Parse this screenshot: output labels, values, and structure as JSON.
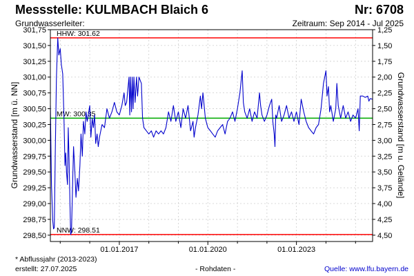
{
  "header": {
    "title": "Messstelle: KULMBACH Blaich 6",
    "number": "Nr: 6708",
    "subtitle": "Grundwasserleiter:",
    "period": "Zeitraum: Sep 2014 - Jul 2025"
  },
  "footer": {
    "footnote": "* Abflussjahr (2013-2023)",
    "created": "erstellt:  27.07.2025",
    "rawdata": "- Rohdaten -",
    "source": "Quelle: www.lfu.bayern.de"
  },
  "colors": {
    "series": "#0000cc",
    "extreme_lines": "#ff0000",
    "mean_line": "#00aa00",
    "grid": "#cccccc"
  },
  "chart_data": {
    "type": "line",
    "title": "Messstelle: KULMBACH Blaich 6",
    "ylabel": "Grundwasserstand [m ü. NN]",
    "ylabel_right": "Grundwasserstand [m u. Gelände]",
    "xlim": [
      "2014-09-01",
      "2025-07-31"
    ],
    "ylim": [
      298.4,
      301.75
    ],
    "ylim_right": [
      4.6,
      1.25
    ],
    "y_ticks": [
      {
        "value": 298.5,
        "label": "298,50"
      },
      {
        "value": 298.75,
        "label": "298,75"
      },
      {
        "value": 299.0,
        "label": "299,00"
      },
      {
        "value": 299.25,
        "label": "299,25"
      },
      {
        "value": 299.5,
        "label": "299,50"
      },
      {
        "value": 299.75,
        "label": "299,75"
      },
      {
        "value": 300.0,
        "label": "300,00"
      },
      {
        "value": 300.25,
        "label": "300,25"
      },
      {
        "value": 300.5,
        "label": "300,50"
      },
      {
        "value": 300.75,
        "label": "300,75"
      },
      {
        "value": 301.0,
        "label": "301,00"
      },
      {
        "value": 301.25,
        "label": "301,25"
      },
      {
        "value": 301.5,
        "label": "301,50"
      },
      {
        "value": 301.75,
        "label": "301,75"
      }
    ],
    "y_ticks_right": [
      {
        "value": 1.25,
        "label": "1,25"
      },
      {
        "value": 1.5,
        "label": "1,50"
      },
      {
        "value": 1.75,
        "label": "1,75"
      },
      {
        "value": 2.0,
        "label": "2,00"
      },
      {
        "value": 2.25,
        "label": "2,25"
      },
      {
        "value": 2.5,
        "label": "2,50"
      },
      {
        "value": 2.75,
        "label": "2,75"
      },
      {
        "value": 3.0,
        "label": "3,00"
      },
      {
        "value": 3.25,
        "label": "3,25"
      },
      {
        "value": 3.5,
        "label": "3,50"
      },
      {
        "value": 3.75,
        "label": "3,75"
      },
      {
        "value": 4.0,
        "label": "4,00"
      },
      {
        "value": 4.25,
        "label": "4,25"
      },
      {
        "value": 4.5,
        "label": "4,50"
      }
    ],
    "x_ticks": [
      {
        "date": "2017-01-01",
        "label": "01.01.2017"
      },
      {
        "date": "2020-01-01",
        "label": "01.01.2020"
      },
      {
        "date": "2023-01-01",
        "label": "01.01.2023"
      }
    ],
    "x_minor_ticks": [
      "2015-01-01",
      "2016-01-01",
      "2018-01-01",
      "2019-01-01",
      "2021-01-01",
      "2022-01-01",
      "2024-01-01",
      "2025-01-01"
    ],
    "grid": true,
    "reference_lines": [
      {
        "label": "HHW: 301.62",
        "value": 301.62,
        "color": "#ff0000"
      },
      {
        "label": "MW: 300.35",
        "value": 300.35,
        "color": "#00aa00"
      },
      {
        "label": "NNW: 298.51",
        "value": 298.51,
        "color": "#ff0000"
      }
    ],
    "series": [
      {
        "points": [
          [
            "2014-09-01",
            300.55
          ],
          [
            "2014-09-15",
            299.3
          ],
          [
            "2014-10-01",
            298.72
          ],
          [
            "2014-10-10",
            298.6
          ],
          [
            "2014-10-20",
            298.62
          ],
          [
            "2014-11-01",
            299.8
          ],
          [
            "2014-11-15",
            301.0
          ],
          [
            "2014-12-01",
            301.62
          ],
          [
            "2014-12-15",
            301.35
          ],
          [
            "2015-01-01",
            301.45
          ],
          [
            "2015-01-15",
            301.2
          ],
          [
            "2015-02-01",
            301.05
          ],
          [
            "2015-02-15",
            300.4
          ],
          [
            "2015-03-01",
            299.6
          ],
          [
            "2015-03-10",
            299.8
          ],
          [
            "2015-03-20",
            299.5
          ],
          [
            "2015-04-01",
            299.3
          ],
          [
            "2015-04-10",
            300.2
          ],
          [
            "2015-04-20",
            299.7
          ],
          [
            "2015-05-01",
            299.0
          ],
          [
            "2015-05-10",
            298.51
          ],
          [
            "2015-05-20",
            298.55
          ],
          [
            "2015-06-01",
            299.2
          ],
          [
            "2015-06-15",
            299.9
          ],
          [
            "2015-07-01",
            299.5
          ],
          [
            "2015-07-15",
            299.1
          ],
          [
            "2015-08-01",
            299.4
          ],
          [
            "2015-08-15",
            299.2
          ],
          [
            "2015-09-01",
            299.6
          ],
          [
            "2015-09-15",
            300.1
          ],
          [
            "2015-10-01",
            299.75
          ],
          [
            "2015-10-15",
            300.3
          ],
          [
            "2015-11-01",
            300.1
          ],
          [
            "2015-11-15",
            300.45
          ],
          [
            "2015-12-01",
            300.3
          ],
          [
            "2016-01-01",
            300.55
          ],
          [
            "2016-01-15",
            300.05
          ],
          [
            "2016-02-01",
            300.35
          ],
          [
            "2016-02-15",
            300.2
          ],
          [
            "2016-03-01",
            300.4
          ],
          [
            "2016-03-15",
            299.95
          ],
          [
            "2016-04-01",
            300.1
          ],
          [
            "2016-04-15",
            299.9
          ],
          [
            "2016-05-01",
            300.05
          ],
          [
            "2016-06-01",
            300.25
          ],
          [
            "2016-07-01",
            300.2
          ],
          [
            "2016-08-01",
            300.5
          ],
          [
            "2016-09-01",
            300.35
          ],
          [
            "2016-10-01",
            300.45
          ],
          [
            "2016-11-01",
            300.6
          ],
          [
            "2016-12-01",
            300.45
          ],
          [
            "2017-01-01",
            300.4
          ],
          [
            "2017-02-01",
            300.55
          ],
          [
            "2017-03-01",
            300.75
          ],
          [
            "2017-03-15",
            300.55
          ],
          [
            "2017-04-01",
            300.6
          ],
          [
            "2017-05-01",
            301.0
          ],
          [
            "2017-05-10",
            300.4
          ],
          [
            "2017-05-20",
            301.0
          ],
          [
            "2017-06-01",
            300.45
          ],
          [
            "2017-06-10",
            301.0
          ],
          [
            "2017-06-20",
            300.5
          ],
          [
            "2017-07-01",
            301.0
          ],
          [
            "2017-07-15",
            300.6
          ],
          [
            "2017-08-01",
            301.0
          ],
          [
            "2017-08-15",
            300.7
          ],
          [
            "2017-09-01",
            301.0
          ],
          [
            "2017-10-01",
            300.9
          ],
          [
            "2017-10-15",
            300.35
          ],
          [
            "2017-11-01",
            300.2
          ],
          [
            "2017-12-01",
            300.15
          ],
          [
            "2018-01-01",
            300.1
          ],
          [
            "2018-02-01",
            300.15
          ],
          [
            "2018-03-01",
            300.05
          ],
          [
            "2018-04-01",
            300.15
          ],
          [
            "2018-05-01",
            300.1
          ],
          [
            "2018-06-01",
            300.15
          ],
          [
            "2018-07-01",
            300.1
          ],
          [
            "2018-08-01",
            300.2
          ],
          [
            "2018-09-01",
            300.45
          ],
          [
            "2018-10-01",
            300.3
          ],
          [
            "2018-11-01",
            300.55
          ],
          [
            "2018-12-01",
            300.3
          ],
          [
            "2019-01-01",
            300.45
          ],
          [
            "2019-02-01",
            300.2
          ],
          [
            "2019-03-01",
            300.5
          ],
          [
            "2019-04-01",
            300.35
          ],
          [
            "2019-05-01",
            300.55
          ],
          [
            "2019-06-01",
            300.15
          ],
          [
            "2019-07-01",
            300.3
          ],
          [
            "2019-07-15",
            300.05
          ],
          [
            "2019-08-01",
            300.2
          ],
          [
            "2019-09-01",
            300.4
          ],
          [
            "2019-10-01",
            300.7
          ],
          [
            "2019-10-15",
            300.5
          ],
          [
            "2019-11-01",
            300.75
          ],
          [
            "2019-12-01",
            300.35
          ],
          [
            "2020-01-01",
            300.2
          ],
          [
            "2020-02-01",
            300.15
          ],
          [
            "2020-03-01",
            300.1
          ],
          [
            "2020-04-01",
            300.05
          ],
          [
            "2020-05-01",
            300.15
          ],
          [
            "2020-06-01",
            300.2
          ],
          [
            "2020-07-01",
            300.25
          ],
          [
            "2020-08-01",
            300.1
          ],
          [
            "2020-09-01",
            300.3
          ],
          [
            "2020-10-01",
            300.35
          ],
          [
            "2020-11-01",
            300.45
          ],
          [
            "2020-12-01",
            300.3
          ],
          [
            "2021-01-01",
            300.5
          ],
          [
            "2021-02-01",
            300.75
          ],
          [
            "2021-03-01",
            301.1
          ],
          [
            "2021-03-15",
            300.6
          ],
          [
            "2021-04-01",
            300.45
          ],
          [
            "2021-05-01",
            300.35
          ],
          [
            "2021-06-01",
            300.5
          ],
          [
            "2021-07-01",
            300.3
          ],
          [
            "2021-08-01",
            300.45
          ],
          [
            "2021-09-01",
            300.35
          ],
          [
            "2021-10-01",
            300.75
          ],
          [
            "2021-10-15",
            300.55
          ],
          [
            "2021-11-01",
            300.4
          ],
          [
            "2021-12-01",
            300.3
          ],
          [
            "2022-01-01",
            300.4
          ],
          [
            "2022-02-01",
            300.55
          ],
          [
            "2022-03-01",
            300.65
          ],
          [
            "2022-03-15",
            300.3
          ],
          [
            "2022-04-01",
            300.1
          ],
          [
            "2022-04-10",
            299.9
          ],
          [
            "2022-04-20",
            300.4
          ],
          [
            "2022-05-01",
            300.35
          ],
          [
            "2022-06-01",
            300.55
          ],
          [
            "2022-07-01",
            300.3
          ],
          [
            "2022-08-01",
            300.4
          ],
          [
            "2022-09-01",
            300.55
          ],
          [
            "2022-10-01",
            300.35
          ],
          [
            "2022-11-01",
            300.45
          ],
          [
            "2022-12-01",
            300.3
          ],
          [
            "2023-01-01",
            300.45
          ],
          [
            "2023-02-01",
            300.25
          ],
          [
            "2023-03-01",
            300.65
          ],
          [
            "2023-04-01",
            300.45
          ],
          [
            "2023-05-01",
            300.3
          ],
          [
            "2023-06-01",
            300.2
          ],
          [
            "2023-07-01",
            300.15
          ],
          [
            "2023-08-01",
            300.1
          ],
          [
            "2023-09-01",
            300.2
          ],
          [
            "2023-10-01",
            300.25
          ],
          [
            "2023-11-01",
            300.5
          ],
          [
            "2023-12-01",
            300.9
          ],
          [
            "2024-01-01",
            301.1
          ],
          [
            "2024-01-15",
            300.7
          ],
          [
            "2024-02-01",
            300.85
          ],
          [
            "2024-02-15",
            300.45
          ],
          [
            "2024-03-01",
            300.55
          ],
          [
            "2024-04-01",
            300.3
          ],
          [
            "2024-05-01",
            300.5
          ],
          [
            "2024-05-15",
            300.9
          ],
          [
            "2024-06-01",
            300.55
          ],
          [
            "2024-07-01",
            300.35
          ],
          [
            "2024-08-01",
            300.55
          ],
          [
            "2024-09-01",
            300.35
          ],
          [
            "2024-10-01",
            300.45
          ],
          [
            "2024-11-01",
            300.3
          ],
          [
            "2024-12-01",
            300.4
          ],
          [
            "2025-01-01",
            300.35
          ],
          [
            "2025-02-01",
            300.5
          ],
          [
            "2025-02-15",
            300.15
          ],
          [
            "2025-03-01",
            300.7
          ],
          [
            "2025-04-01",
            300.7
          ],
          [
            "2025-05-01",
            300.68
          ],
          [
            "2025-06-01",
            300.7
          ],
          [
            "2025-06-15",
            300.62
          ],
          [
            "2025-07-01",
            300.66
          ],
          [
            "2025-07-31",
            300.65
          ]
        ]
      }
    ]
  }
}
